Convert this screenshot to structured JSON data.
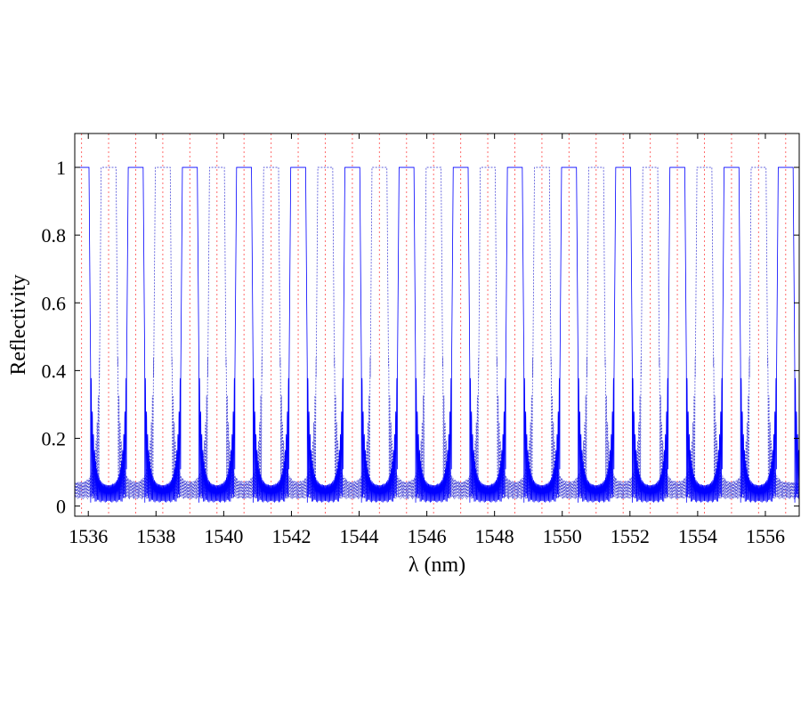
{
  "chart_data": {
    "type": "line",
    "xlabel": "λ (nm)",
    "ylabel": "Reflectivity",
    "xlim": [
      1535.6,
      1557.0
    ],
    "ylim": [
      -0.03,
      1.1
    ],
    "x_ticks": [
      1536,
      1538,
      1540,
      1542,
      1544,
      1546,
      1548,
      1550,
      1552,
      1554,
      1556
    ],
    "x_tick_labels": [
      "1536",
      "1538",
      "1540",
      "1542",
      "1544",
      "1546",
      "1548",
      "1550",
      "1552",
      "1554",
      "1556"
    ],
    "y_ticks": [
      0,
      0.2,
      0.4,
      0.6,
      0.8,
      1
    ],
    "y_tick_labels": [
      "0",
      "0.2",
      "0.4",
      "0.6",
      "0.8",
      "1"
    ],
    "grid": false,
    "legend": "none",
    "colors": {
      "solid": "#0000ff",
      "dotted": "#4f4fd8",
      "markers": "#ff6b6b",
      "axes": "#000000"
    },
    "series": [
      {
        "style": "solid",
        "peak_reflectivity": 1.0,
        "peak_centers_nm": [
          1535.8,
          1537.4,
          1539.0,
          1540.6,
          1542.2,
          1543.8,
          1545.4,
          1547.0,
          1548.6,
          1550.2,
          1551.8,
          1553.4,
          1555.0,
          1556.6
        ]
      },
      {
        "style": "dotted",
        "peak_reflectivity": 1.0,
        "peak_centers_nm": [
          1536.6,
          1538.2,
          1539.8,
          1541.4,
          1543.0,
          1544.6,
          1546.2,
          1547.8,
          1549.4,
          1551.0,
          1552.6,
          1554.2,
          1555.8
        ]
      }
    ],
    "channel_markers_nm": [
      1535.8,
      1536.6,
      1537.4,
      1538.2,
      1539.0,
      1539.8,
      1540.6,
      1541.4,
      1542.2,
      1543.0,
      1543.8,
      1544.6,
      1545.4,
      1546.2,
      1547.0,
      1547.8,
      1548.6,
      1549.4,
      1550.2,
      1551.0,
      1551.8,
      1552.6,
      1553.4,
      1554.2,
      1555.0,
      1555.8,
      1556.6
    ]
  }
}
